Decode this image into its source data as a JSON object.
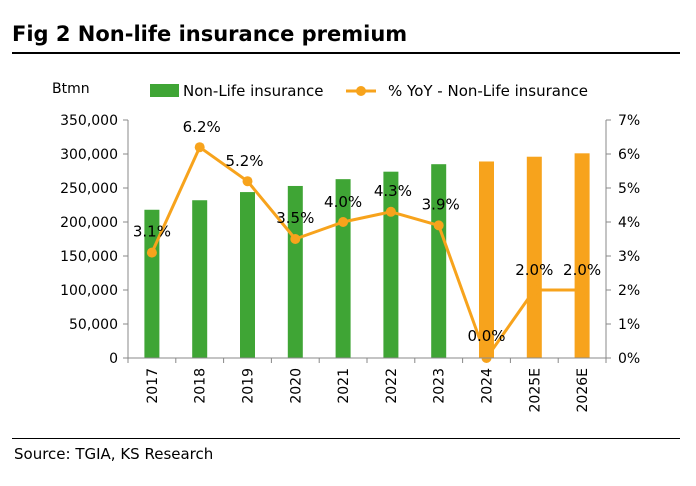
{
  "figure": {
    "title": "Fig 2  Non-life insurance premium",
    "source": "Source: TGIA, KS Research"
  },
  "colors": {
    "bar_actual": "#3FA535",
    "bar_forecast": "#F7A31C",
    "line": "#F7A31C"
  },
  "chart_data": {
    "type": "bar",
    "categories": [
      "2017",
      "2018",
      "2019",
      "2020",
      "2021",
      "2022",
      "2023",
      "2024",
      "2025E",
      "2026E"
    ],
    "forecast_from_index": 7,
    "y_unit_label": "Btmn",
    "ylim": [
      0,
      350000
    ],
    "y_ticks": [
      0,
      50000,
      100000,
      150000,
      200000,
      250000,
      300000,
      350000
    ],
    "y_tick_labels": [
      "0",
      "50,000",
      "100,000",
      "150,000",
      "200,000",
      "250,000",
      "300,000",
      "350,000"
    ],
    "y2lim": [
      0,
      7
    ],
    "y2_ticks": [
      0,
      1,
      2,
      3,
      4,
      5,
      6,
      7
    ],
    "y2_tick_labels": [
      "0%",
      "1%",
      "2%",
      "3%",
      "4%",
      "5%",
      "6%",
      "7%"
    ],
    "legend_position": "top",
    "series": [
      {
        "name": "Non-Life insurance",
        "type": "bar",
        "axis": "left",
        "values": [
          218000,
          232000,
          244000,
          253000,
          263000,
          274000,
          285000,
          289000,
          296000,
          301000
        ]
      },
      {
        "name": "% YoY - Non-Life insurance",
        "type": "line",
        "axis": "right",
        "values": [
          3.1,
          6.2,
          5.2,
          3.5,
          4.0,
          4.3,
          3.9,
          0.0,
          2.0,
          2.0
        ],
        "labels": [
          "3.1%",
          "6.2%",
          "5.2%",
          "3.5%",
          "4.0%",
          "4.3%",
          "3.9%",
          "0.0%",
          "2.0%",
          "2.0%"
        ]
      }
    ]
  }
}
